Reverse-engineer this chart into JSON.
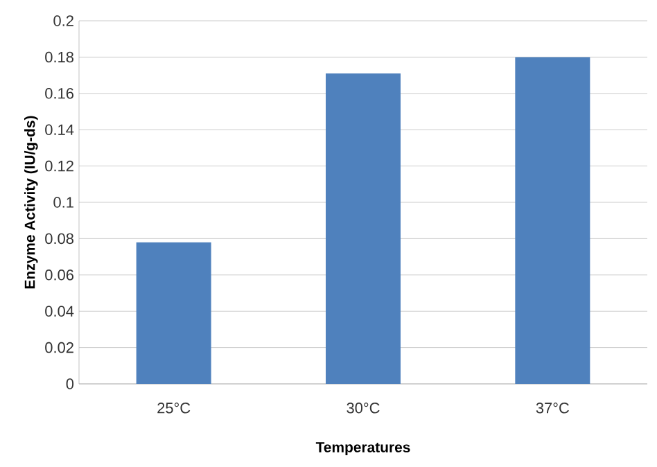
{
  "chart_data": {
    "type": "bar",
    "xlabel": "Temperatures",
    "ylabel": "Enzyme Activity (IU/g-ds)",
    "categories": [
      "25°C",
      "30°C",
      "37°C"
    ],
    "values": [
      0.078,
      0.171,
      0.18
    ],
    "color": "#4f81bd",
    "ylim": [
      0,
      0.2
    ],
    "yticks": [
      0,
      0.02,
      0.04,
      0.06,
      0.08,
      0.1,
      0.12,
      0.14,
      0.16,
      0.18,
      0.2
    ],
    "grid": "y"
  }
}
